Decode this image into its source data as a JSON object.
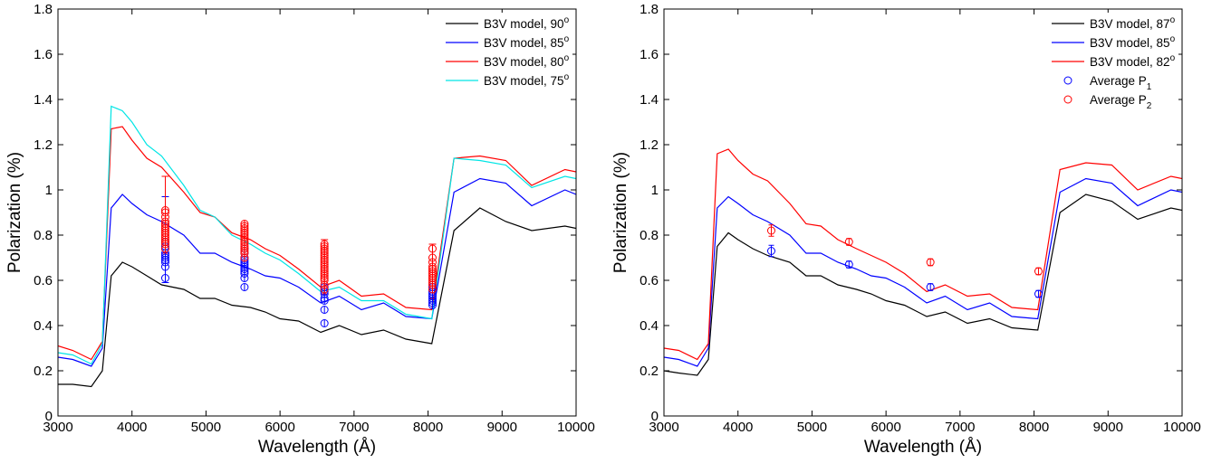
{
  "chart_data": [
    {
      "type": "line",
      "xlabel": "Wavelength (Å)",
      "ylabel": "Polarization (%)",
      "xlim": [
        3000,
        10000
      ],
      "ylim": [
        0,
        1.8
      ],
      "xticks": [
        "3000",
        "4000",
        "5000",
        "6000",
        "7000",
        "8000",
        "9000",
        "10000"
      ],
      "yticks": [
        "0",
        "0.2",
        "0.4",
        "0.6",
        "0.8",
        "1",
        "1.2",
        "1.4",
        "1.6",
        "1.8"
      ],
      "legend_position": "top-right",
      "x": [
        3000,
        3200,
        3450,
        3600,
        3720,
        3870,
        4000,
        4200,
        4400,
        4700,
        4920,
        5120,
        5350,
        5600,
        5800,
        6000,
        6250,
        6550,
        6800,
        7100,
        7400,
        7700,
        8050,
        8350,
        8700,
        9050,
        9400,
        9850,
        10000
      ],
      "series": [
        {
          "name": "B3V model, 90",
          "sup": "o",
          "color": "#000000",
          "values": [
            0.14,
            0.14,
            0.13,
            0.2,
            0.62,
            0.68,
            0.66,
            0.62,
            0.58,
            0.56,
            0.52,
            0.52,
            0.49,
            0.48,
            0.46,
            0.43,
            0.42,
            0.37,
            0.4,
            0.36,
            0.38,
            0.34,
            0.32,
            0.82,
            0.92,
            0.86,
            0.82,
            0.84,
            0.83
          ]
        },
        {
          "name": "B3V model, 85",
          "sup": "o",
          "color": "#0000ff",
          "values": [
            0.26,
            0.25,
            0.22,
            0.3,
            0.92,
            0.98,
            0.94,
            0.89,
            0.86,
            0.8,
            0.72,
            0.72,
            0.68,
            0.65,
            0.62,
            0.61,
            0.57,
            0.5,
            0.53,
            0.47,
            0.5,
            0.44,
            0.43,
            0.99,
            1.05,
            1.03,
            0.93,
            1.0,
            0.98
          ]
        },
        {
          "name": "B3V model, 80",
          "sup": "o",
          "color": "#ff0000",
          "values": [
            0.31,
            0.29,
            0.25,
            0.33,
            1.27,
            1.28,
            1.22,
            1.14,
            1.1,
            0.99,
            0.9,
            0.88,
            0.81,
            0.78,
            0.74,
            0.71,
            0.65,
            0.57,
            0.6,
            0.53,
            0.54,
            0.48,
            0.47,
            1.14,
            1.15,
            1.13,
            1.02,
            1.09,
            1.08
          ]
        },
        {
          "name": "B3V model, 75",
          "sup": "o",
          "color": "#00e5e5",
          "values": [
            0.28,
            0.27,
            0.23,
            0.32,
            1.37,
            1.35,
            1.3,
            1.2,
            1.15,
            1.02,
            0.91,
            0.88,
            0.8,
            0.76,
            0.72,
            0.69,
            0.63,
            0.55,
            0.57,
            0.51,
            0.51,
            0.45,
            0.43,
            1.14,
            1.13,
            1.11,
            1.01,
            1.06,
            1.05
          ]
        }
      ],
      "observations": [
        {
          "color": "#0000ff",
          "x": 4450,
          "values": [
            0.61,
            0.66,
            0.68,
            0.69,
            0.7,
            0.71,
            0.72,
            0.74,
            0.75,
            0.77
          ]
        },
        {
          "color": "#ff0000",
          "x": 4450,
          "values": [
            0.74,
            0.76,
            0.77,
            0.78,
            0.79,
            0.8,
            0.81,
            0.82,
            0.83,
            0.84,
            0.85,
            0.86,
            0.88,
            0.9,
            0.91
          ]
        },
        {
          "color": "#0000ff",
          "x": 5520,
          "values": [
            0.57,
            0.61,
            0.63,
            0.64,
            0.65,
            0.66,
            0.67,
            0.68,
            0.69,
            0.7,
            0.72,
            0.74
          ]
        },
        {
          "color": "#ff0000",
          "x": 5520,
          "values": [
            0.7,
            0.72,
            0.73,
            0.74,
            0.75,
            0.76,
            0.77,
            0.78,
            0.79,
            0.8,
            0.81,
            0.82,
            0.83,
            0.84,
            0.85
          ]
        },
        {
          "color": "#0000ff",
          "x": 6600,
          "values": [
            0.41,
            0.47,
            0.51,
            0.52,
            0.54,
            0.55,
            0.56,
            0.57
          ]
        },
        {
          "color": "#ff0000",
          "x": 6600,
          "values": [
            0.56,
            0.58,
            0.6,
            0.61,
            0.62,
            0.63,
            0.64,
            0.65,
            0.66,
            0.67,
            0.68,
            0.69,
            0.7,
            0.71,
            0.72,
            0.73,
            0.74,
            0.75,
            0.76
          ]
        },
        {
          "color": "#0000ff",
          "x": 8060,
          "values": [
            0.49,
            0.5,
            0.51,
            0.52,
            0.53,
            0.54,
            0.55,
            0.56,
            0.57,
            0.58
          ]
        },
        {
          "color": "#ff0000",
          "x": 8060,
          "values": [
            0.56,
            0.58,
            0.59,
            0.6,
            0.61,
            0.62,
            0.63,
            0.64,
            0.65,
            0.66,
            0.68,
            0.7,
            0.74
          ]
        }
      ],
      "errorbars": [
        {
          "color": "#0000ff",
          "x": 4450,
          "low": 0.59,
          "high": 0.97
        },
        {
          "color": "#ff0000",
          "x": 4450,
          "low": 0.72,
          "high": 1.06
        },
        {
          "color": "#ff0000",
          "x": 6600,
          "low": 0.54,
          "high": 0.78
        },
        {
          "color": "#ff0000",
          "x": 8060,
          "low": 0.52,
          "high": 0.76
        }
      ]
    },
    {
      "type": "line",
      "xlabel": "Wavelength (Å)",
      "ylabel": "Polarization (%)",
      "xlim": [
        3000,
        10000
      ],
      "ylim": [
        0,
        1.8
      ],
      "xticks": [
        "3000",
        "4000",
        "5000",
        "6000",
        "7000",
        "8000",
        "9000",
        "10000"
      ],
      "yticks": [
        "0",
        "0.2",
        "0.4",
        "0.6",
        "0.8",
        "1",
        "1.2",
        "1.4",
        "1.6",
        "1.8"
      ],
      "legend_position": "top-right",
      "x": [
        3000,
        3200,
        3450,
        3600,
        3720,
        3870,
        4000,
        4200,
        4400,
        4700,
        4920,
        5120,
        5350,
        5600,
        5800,
        6000,
        6250,
        6550,
        6800,
        7100,
        7400,
        7700,
        8050,
        8350,
        8700,
        9050,
        9400,
        9850,
        10000
      ],
      "series": [
        {
          "name": "B3V model, 87",
          "sup": "o",
          "color": "#000000",
          "values": [
            0.2,
            0.19,
            0.18,
            0.25,
            0.75,
            0.81,
            0.78,
            0.74,
            0.71,
            0.68,
            0.62,
            0.62,
            0.58,
            0.56,
            0.54,
            0.51,
            0.49,
            0.44,
            0.46,
            0.41,
            0.43,
            0.39,
            0.38,
            0.9,
            0.98,
            0.95,
            0.87,
            0.92,
            0.91
          ]
        },
        {
          "name": "B3V model, 85",
          "sup": "o",
          "color": "#0000ff",
          "values": [
            0.26,
            0.25,
            0.22,
            0.3,
            0.92,
            0.97,
            0.94,
            0.89,
            0.86,
            0.8,
            0.72,
            0.72,
            0.68,
            0.65,
            0.62,
            0.61,
            0.57,
            0.5,
            0.53,
            0.47,
            0.5,
            0.44,
            0.43,
            0.99,
            1.05,
            1.03,
            0.93,
            1.0,
            0.99
          ]
        },
        {
          "name": "B3V model, 82",
          "sup": "o",
          "color": "#ff0000",
          "values": [
            0.3,
            0.29,
            0.25,
            0.32,
            1.16,
            1.18,
            1.13,
            1.07,
            1.04,
            0.94,
            0.85,
            0.84,
            0.78,
            0.74,
            0.71,
            0.68,
            0.63,
            0.55,
            0.58,
            0.53,
            0.54,
            0.48,
            0.47,
            1.09,
            1.12,
            1.11,
            1.0,
            1.06,
            1.05
          ]
        }
      ],
      "points": [
        {
          "name": "Average P",
          "sub": "1",
          "color": "#0000ff",
          "x": [
            4450,
            5500,
            6600,
            8060
          ],
          "values": [
            0.73,
            0.67,
            0.57,
            0.54
          ],
          "err": [
            0.025,
            0.015,
            0.015,
            0.015
          ]
        },
        {
          "name": "Average P",
          "sub": "2",
          "color": "#ff0000",
          "x": [
            4450,
            5500,
            6600,
            8060
          ],
          "values": [
            0.82,
            0.77,
            0.68,
            0.64
          ],
          "err": [
            0.025,
            0.015,
            0.015,
            0.015
          ]
        }
      ]
    }
  ]
}
